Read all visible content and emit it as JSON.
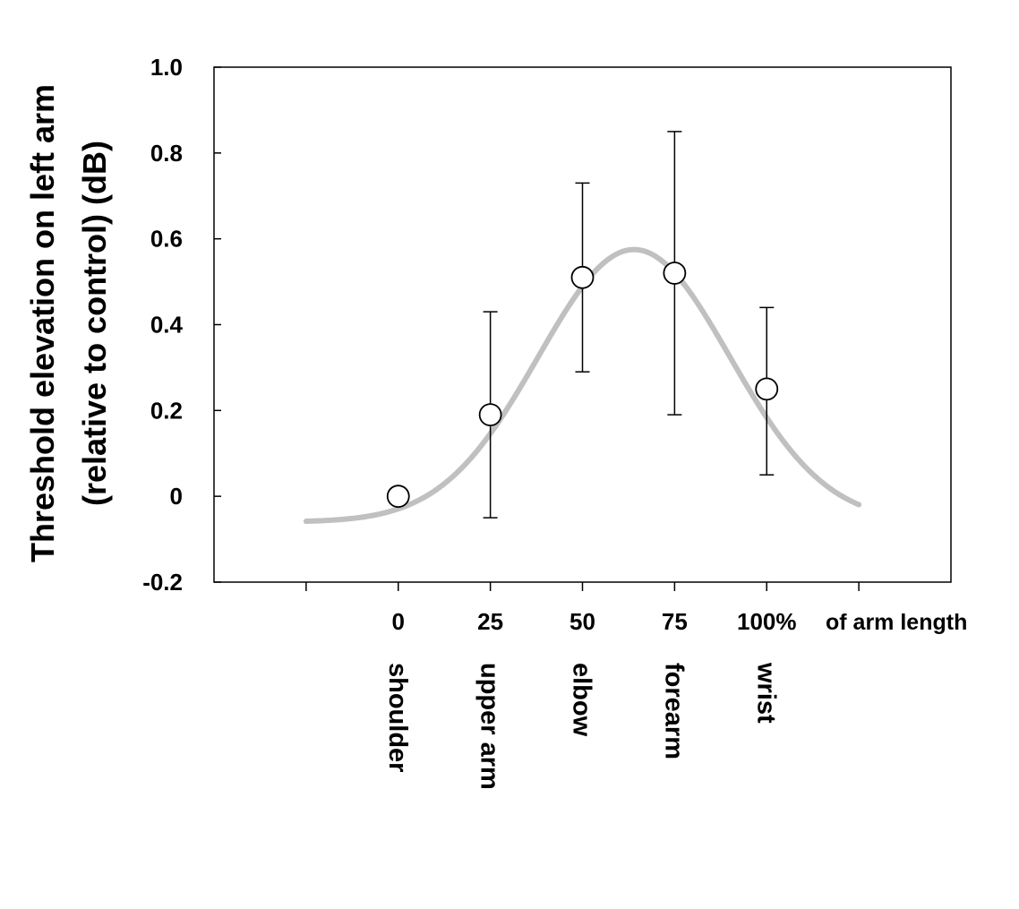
{
  "chart_data": {
    "type": "scatter",
    "title": "",
    "ylabel_lines": [
      "Threshold elevation on left arm",
      "(relative to control) (dB)"
    ],
    "x_unit_label": "of arm length",
    "x_ticks": [
      {
        "value": 0,
        "label": "0"
      },
      {
        "value": 25,
        "label": "25"
      },
      {
        "value": 50,
        "label": "50"
      },
      {
        "value": 75,
        "label": "75"
      },
      {
        "value": 100,
        "label": "100%"
      }
    ],
    "x_region_labels": [
      {
        "value": 0,
        "label": "shoulder"
      },
      {
        "value": 25,
        "label": "upper arm"
      },
      {
        "value": 50,
        "label": "elbow"
      },
      {
        "value": 75,
        "label": "forearm"
      },
      {
        "value": 100,
        "label": "wrist"
      }
    ],
    "x_tick_marks": [
      -25,
      0,
      25,
      50,
      75,
      100,
      125
    ],
    "y_ticks": [
      {
        "value": 1.0,
        "label": "1.0"
      },
      {
        "value": 0.8,
        "label": "0.8"
      },
      {
        "value": 0.6,
        "label": "0.6"
      },
      {
        "value": 0.4,
        "label": "0.4"
      },
      {
        "value": 0.2,
        "label": "0.2"
      },
      {
        "value": 0.0,
        "label": "0"
      },
      {
        "value": -0.2,
        "label": "-0.2"
      }
    ],
    "xlim": [
      -50,
      150
    ],
    "ylim": [
      -0.2,
      1.0
    ],
    "points": [
      {
        "x": 0,
        "y": 0.0
      },
      {
        "x": 25,
        "y": 0.19,
        "err_low": -0.05,
        "err_high": 0.43
      },
      {
        "x": 50,
        "y": 0.51,
        "err_low": 0.29,
        "err_high": 0.73
      },
      {
        "x": 75,
        "y": 0.52,
        "err_low": 0.19,
        "err_high": 0.85
      },
      {
        "x": 100,
        "y": 0.25,
        "err_low": 0.05,
        "err_high": 0.44
      }
    ],
    "fit_curve": {
      "function": "gaussian",
      "baseline": -0.06,
      "amplitude": 0.635,
      "mean": 64,
      "sigma": 26,
      "x_range": [
        -25,
        125
      ],
      "color": "#c0c0c0"
    },
    "grid": false,
    "legend": "none"
  }
}
